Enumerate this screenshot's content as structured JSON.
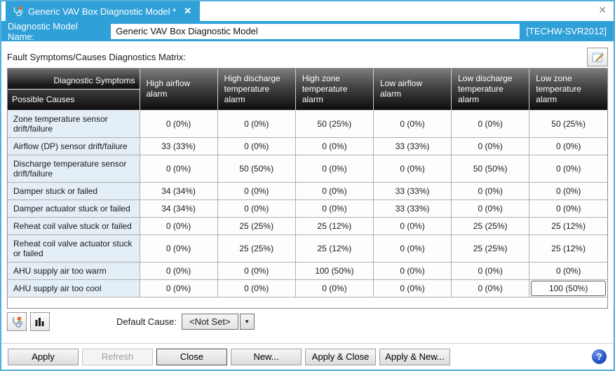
{
  "window": {
    "close_glyph": "✕"
  },
  "tab": {
    "title": "Generic VAV Box Diagnostic Model *",
    "close_glyph": "✕"
  },
  "name_bar": {
    "label": "Diagnostic Model Name:",
    "value": "Generic VAV Box Diagnostic Model",
    "server_tag": "[TECHW-SVR2012]"
  },
  "matrix": {
    "caption": "Fault Symptoms/Causes Diagnostics Matrix:",
    "corner_top": "Diagnostic Symptoms",
    "corner_bottom": "Possible Causes",
    "columns": [
      "High airflow alarm",
      "High discharge temperature alarm",
      "High zone temperature alarm",
      "Low airflow alarm",
      "Low discharge temperature alarm",
      "Low zone temperature alarm"
    ],
    "rows": [
      {
        "cause": "Zone temperature sensor drift/failure",
        "values": [
          "0 (0%)",
          "0 (0%)",
          "50 (25%)",
          "0 (0%)",
          "0 (0%)",
          "50 (25%)"
        ]
      },
      {
        "cause": "Airflow (DP) sensor drift/failure",
        "values": [
          "33 (33%)",
          "0 (0%)",
          "0 (0%)",
          "33 (33%)",
          "0 (0%)",
          "0 (0%)"
        ]
      },
      {
        "cause": "Discharge temperature sensor drift/failure",
        "values": [
          "0 (0%)",
          "50 (50%)",
          "0 (0%)",
          "0 (0%)",
          "50 (50%)",
          "0 (0%)"
        ]
      },
      {
        "cause": "Damper stuck or failed",
        "values": [
          "34 (34%)",
          "0 (0%)",
          "0 (0%)",
          "33 (33%)",
          "0 (0%)",
          "0 (0%)"
        ]
      },
      {
        "cause": "Damper actuator stuck or failed",
        "values": [
          "34 (34%)",
          "0 (0%)",
          "0 (0%)",
          "33 (33%)",
          "0 (0%)",
          "0 (0%)"
        ]
      },
      {
        "cause": "Reheat coil valve stuck or failed",
        "values": [
          "0 (0%)",
          "25 (25%)",
          "25 (12%)",
          "0 (0%)",
          "25 (25%)",
          "25 (12%)"
        ]
      },
      {
        "cause": "Reheat coil valve actuator stuck or failed",
        "values": [
          "0 (0%)",
          "25 (25%)",
          "25 (12%)",
          "0 (0%)",
          "25 (25%)",
          "25 (12%)"
        ]
      },
      {
        "cause": "AHU supply air too warm",
        "values": [
          "0 (0%)",
          "0 (0%)",
          "100 (50%)",
          "0 (0%)",
          "0 (0%)",
          "0 (0%)"
        ]
      },
      {
        "cause": "AHU supply air too cool",
        "values": [
          "0 (0%)",
          "0 (0%)",
          "0 (0%)",
          "0 (0%)",
          "0 (0%)",
          "100 (50%)"
        ]
      }
    ],
    "selected_cell": {
      "row": 8,
      "col": 5
    }
  },
  "footer": {
    "default_cause_label": "Default Cause:",
    "default_cause_value": "<Not Set>",
    "dropdown_glyph": "▼"
  },
  "buttons": [
    {
      "label": "Apply",
      "enabled": true
    },
    {
      "label": "Refresh",
      "enabled": false
    },
    {
      "label": "Close",
      "enabled": true
    },
    {
      "label": "New...",
      "enabled": true
    },
    {
      "label": "Apply & Close",
      "enabled": true
    },
    {
      "label": "Apply & New...",
      "enabled": true
    }
  ],
  "help": {
    "glyph": "?"
  },
  "colors": {
    "accent": "#2fa0d8",
    "header_gradient_top": "#7d7d7d",
    "header_gradient_bottom": "#0c0c0c",
    "cause_cell_bg": "#e3eef7",
    "help_blue": "#2a57c9"
  }
}
